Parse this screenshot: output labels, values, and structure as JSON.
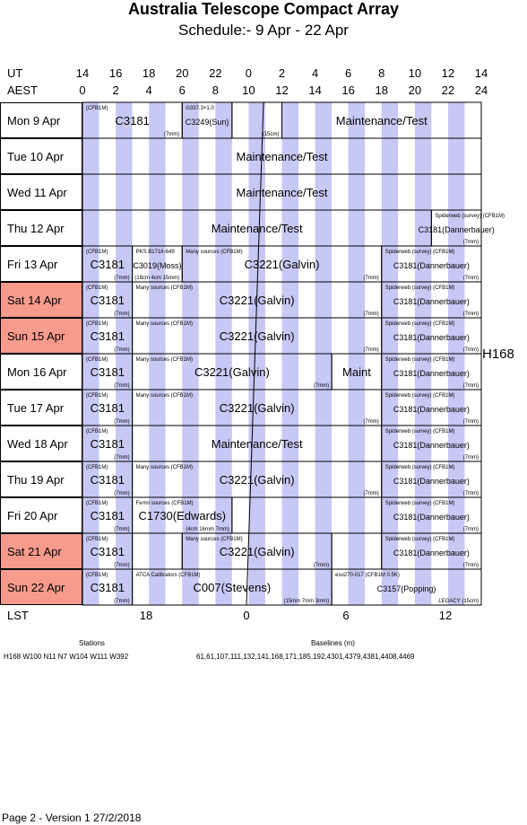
{
  "header": {
    "title": "Australia Telescope Compact Array",
    "subtitle": "Schedule:- 9  Apr - 22 Apr"
  },
  "axes": {
    "ut_label": "UT",
    "aest_label": "AEST",
    "lst_label": "LST",
    "ut_ticks": [
      "14",
      "16",
      "18",
      "20",
      "22",
      "0",
      "2",
      "4",
      "6",
      "8",
      "10",
      "12",
      "14"
    ],
    "aest_ticks": [
      "0",
      "2",
      "4",
      "6",
      "8",
      "10",
      "12",
      "14",
      "16",
      "18",
      "20",
      "22",
      "24"
    ],
    "lst_ticks": [
      "18",
      "0",
      "6",
      "12"
    ]
  },
  "config_label": "H168",
  "colors": {
    "weekend": "#f79b8d",
    "night_band": "#c8c8f5",
    "grey_band": "#d3d3d3",
    "green_band": "#98e08a"
  },
  "rows": [
    {
      "day": "Mon",
      "date": "9  Apr",
      "weekend": false,
      "blocks": [
        {
          "from": 0,
          "to": 2,
          "text": "C3181",
          "top": "(CFB1M)",
          "bottom": "(7mm)",
          "size": 13
        },
        {
          "from": 2,
          "to": 3,
          "text": "C3249(Sun)",
          "top": "G337.3+1.0",
          "bottom": "",
          "size": 9
        },
        {
          "from": 3,
          "to": 4,
          "text": "",
          "top": "",
          "bottom": "(15cm)",
          "size": 9
        },
        {
          "from": 4,
          "to": 8,
          "text": "Maintenance/Test",
          "top": "",
          "bottom": "",
          "size": 13
        }
      ]
    },
    {
      "day": "Tue",
      "date": "10 Apr",
      "weekend": false,
      "blocks": [
        {
          "from": 0,
          "to": 8,
          "text": "Maintenance/Test",
          "top": "",
          "bottom": "",
          "size": 13
        }
      ]
    },
    {
      "day": "Wed",
      "date": "11 Apr",
      "weekend": false,
      "blocks": [
        {
          "from": 0,
          "to": 8,
          "text": "Maintenance/Test",
          "top": "",
          "bottom": "",
          "size": 13
        }
      ]
    },
    {
      "day": "Thu",
      "date": "12 Apr",
      "weekend": false,
      "blocks": [
        {
          "from": 0,
          "to": 7,
          "text": "Maintenance/Test",
          "top": "",
          "bottom": "",
          "size": 13
        },
        {
          "from": 7,
          "to": 8,
          "text": "C3181(Dannerbauer)",
          "top": "Spiderweb (survey)    (CFB1M)",
          "bottom": "(7mm)",
          "size": 9
        }
      ]
    },
    {
      "day": "Fri",
      "date": "13 Apr",
      "weekend": false,
      "blocks": [
        {
          "from": 0,
          "to": 1,
          "text": "C3181",
          "top": "(CFB1M)",
          "bottom": "(7mm)",
          "size": 13
        },
        {
          "from": 1,
          "to": 2,
          "text": "C3019(Moss)",
          "top": "PKS B1718-649",
          "bottom": "(16cm 4cm 15mm)",
          "size": 9
        },
        {
          "from": 2,
          "to": 6,
          "text": "C3221(Galvin)",
          "top": "Many sources               (CFB1M)",
          "bottom": "(7mm)",
          "size": 13
        },
        {
          "from": 6,
          "to": 8,
          "text": "C3181(Dannerbauer)",
          "top": "Spiderweb (survey)    (CFB1M)",
          "bottom": "(7mm)",
          "size": 9
        }
      ]
    },
    {
      "day": "Sat",
      "date": "14 Apr",
      "weekend": true,
      "blocks": [
        {
          "from": 0,
          "to": 1,
          "text": "C3181",
          "top": "(CFB1M)",
          "bottom": "(7mm)",
          "size": 13
        },
        {
          "from": 1,
          "to": 6,
          "text": "C3221(Galvin)",
          "top": "Many sources               (CFB1M)",
          "bottom": "(7mm)",
          "size": 13
        },
        {
          "from": 6,
          "to": 8,
          "text": "C3181(Dannerbauer)",
          "top": "Spiderweb (survey)    (CFB1M)",
          "bottom": "(7mm)",
          "size": 9
        }
      ]
    },
    {
      "day": "Sun",
      "date": "15 Apr",
      "weekend": true,
      "blocks": [
        {
          "from": 0,
          "to": 1,
          "text": "C3181",
          "top": "(CFB1M)",
          "bottom": "(7mm)",
          "size": 13
        },
        {
          "from": 1,
          "to": 6,
          "text": "C3221(Galvin)",
          "top": "Many sources               (CFB1M)",
          "bottom": "(7mm)",
          "size": 13
        },
        {
          "from": 6,
          "to": 8,
          "text": "C3181(Dannerbauer)",
          "top": "Spiderweb (survey)    (CFB1M)",
          "bottom": "(7mm)",
          "size": 9
        }
      ]
    },
    {
      "day": "Mon",
      "date": "16 Apr",
      "weekend": false,
      "blocks": [
        {
          "from": 0,
          "to": 1,
          "text": "C3181",
          "top": "(CFB1M)",
          "bottom": "(7mm)",
          "size": 13
        },
        {
          "from": 1,
          "to": 5,
          "text": "C3221(Galvin)",
          "top": "Many sources               (CFB1M)",
          "bottom": "(7mm)",
          "size": 13
        },
        {
          "from": 5,
          "to": 6,
          "text": "Maint",
          "top": "",
          "bottom": "",
          "size": 13
        },
        {
          "from": 6,
          "to": 8,
          "text": "C3181(Dannerbauer)",
          "top": "Spiderweb (survey)    (CFB1M)",
          "bottom": "(7mm)",
          "size": 9
        }
      ]
    },
    {
      "day": "Tue",
      "date": "17 Apr",
      "weekend": false,
      "blocks": [
        {
          "from": 0,
          "to": 1,
          "text": "C3181",
          "top": "(CFB1M)",
          "bottom": "(7mm)",
          "size": 13
        },
        {
          "from": 1,
          "to": 6,
          "text": "C3221(Galvin)",
          "top": "Many sources               (CFB1M)",
          "bottom": "(7mm)",
          "size": 13
        },
        {
          "from": 6,
          "to": 8,
          "text": "C3181(Dannerbauer)",
          "top": "Spiderweb (survey)    (CFB1M)",
          "bottom": "(7mm)",
          "size": 9
        }
      ]
    },
    {
      "day": "Wed",
      "date": "18 Apr",
      "weekend": false,
      "blocks": [
        {
          "from": 0,
          "to": 1,
          "text": "C3181",
          "top": "(CFB1M)",
          "bottom": "(7mm)",
          "size": 13
        },
        {
          "from": 1,
          "to": 6,
          "text": "Maintenance/Test",
          "top": "",
          "bottom": "",
          "size": 13
        },
        {
          "from": 6,
          "to": 8,
          "text": "C3181(Dannerbauer)",
          "top": "Spiderweb (survey)    (CFB1M)",
          "bottom": "(7mm)",
          "size": 9
        }
      ]
    },
    {
      "day": "Thu",
      "date": "19 Apr",
      "weekend": false,
      "blocks": [
        {
          "from": 0,
          "to": 1,
          "text": "C3181",
          "top": "(CFB1M)",
          "bottom": "(7mm)",
          "size": 13
        },
        {
          "from": 1,
          "to": 6,
          "text": "C3221(Galvin)",
          "top": "Many sources               (CFB1M)",
          "bottom": "(7mm)",
          "size": 13
        },
        {
          "from": 6,
          "to": 8,
          "text": "C3181(Dannerbauer)",
          "top": "Spiderweb (survey)    (CFB1M)",
          "bottom": "(7mm)",
          "size": 9
        }
      ]
    },
    {
      "day": "Fri",
      "date": "20 Apr",
      "weekend": false,
      "blocks": [
        {
          "from": 0,
          "to": 1,
          "text": "C3181",
          "top": "(CFB1M)",
          "bottom": "(7mm)",
          "size": 13
        },
        {
          "from": 1,
          "to": 3,
          "text": "C1730(Edwards)",
          "top": "Fermi sources            (CFB1M)",
          "bottom": "(4cm 16mm 7mm)",
          "size": 13
        },
        {
          "from": 3,
          "to": 6,
          "text": "",
          "top": "",
          "bottom": "",
          "size": 13
        },
        {
          "from": 6,
          "to": 8,
          "text": "C3181(Dannerbauer)",
          "top": "Spiderweb (survey)    (CFB1M)",
          "bottom": "(7mm)",
          "size": 9
        }
      ]
    },
    {
      "day": "Sat",
      "date": "21 Apr",
      "weekend": true,
      "blocks": [
        {
          "from": 0,
          "to": 1,
          "text": "C3181",
          "top": "(CFB1M)",
          "bottom": "(7mm)",
          "size": 13
        },
        {
          "from": 1,
          "to": 2,
          "text": "",
          "top": "",
          "bottom": "",
          "size": 13
        },
        {
          "from": 2,
          "to": 5,
          "text": "C3221(Galvin)",
          "top": "Many sources               (CFB1M)",
          "bottom": "(7mm)",
          "size": 13
        },
        {
          "from": 5,
          "to": 6,
          "text": "",
          "top": "",
          "bottom": "",
          "size": 13
        },
        {
          "from": 6,
          "to": 8,
          "text": "C3181(Dannerbauer)",
          "top": "Spiderweb (survey)    (CFB1M)",
          "bottom": "(7mm)",
          "size": 9
        }
      ]
    },
    {
      "day": "Sun",
      "date": "22 Apr",
      "weekend": true,
      "blocks": [
        {
          "from": 0,
          "to": 1,
          "text": "C3181",
          "top": "(CFB1M)",
          "bottom": "(7mm)",
          "size": 13
        },
        {
          "from": 1,
          "to": 5,
          "text": "C007(Stevens)",
          "top": "ATCA Calibrators             (CFB1M)",
          "bottom": "(15mm 7mm 3mm)",
          "size": 13
        },
        {
          "from": 5,
          "to": 8,
          "text": "C3157(Popping)",
          "top": "eso270-017   (CFB1M 0.5K)",
          "bottom": "LEGACY         (15cm)",
          "size": 9
        }
      ]
    }
  ],
  "footer": {
    "stations_title": "Stations",
    "stations": "H168   W100  N11  N7  W104  W111  W392",
    "baselines_title": "Baselines (m)",
    "baselines": "61,61,107,111,132,141,168,171,185,192,4301,4379,4381,4408,4469",
    "version": "Page 2 - Version 1  27/2/2018"
  }
}
